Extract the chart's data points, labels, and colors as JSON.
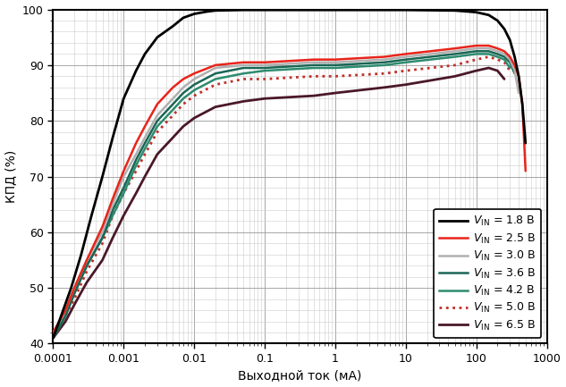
{
  "title": "",
  "xlabel": "Выходной ток (мА)",
  "ylabel": "КПД (%)",
  "xlim": [
    0.0001,
    1000
  ],
  "ylim": [
    40,
    100
  ],
  "yticks": [
    40,
    50,
    60,
    70,
    80,
    90,
    100
  ],
  "series": [
    {
      "label": "V_IN = 1.8 В",
      "color": "#000000",
      "linestyle": "solid",
      "linewidth": 2.0,
      "zorder": 10,
      "points_x": [
        0.0001,
        0.00013,
        0.00018,
        0.00025,
        0.00035,
        0.0005,
        0.0007,
        0.001,
        0.0015,
        0.002,
        0.003,
        0.005,
        0.007,
        0.01,
        0.015,
        0.02,
        0.05,
        0.1,
        0.5,
        1,
        5,
        10,
        50,
        100,
        150,
        200,
        250,
        300,
        350,
        400,
        450,
        500
      ],
      "points_y": [
        41,
        45,
        50,
        56,
        63,
        70,
        77,
        84,
        89,
        92,
        95,
        97,
        98.5,
        99.2,
        99.6,
        99.8,
        99.9,
        99.9,
        99.9,
        99.9,
        99.9,
        99.9,
        99.8,
        99.5,
        99.0,
        98.0,
        96.5,
        94.5,
        91.5,
        88.0,
        83.0,
        76.0
      ]
    },
    {
      "label": "V_IN = 2.5 В",
      "color": "#e8241a",
      "linestyle": "solid",
      "linewidth": 1.8,
      "zorder": 7,
      "points_x": [
        0.0001,
        0.00015,
        0.0002,
        0.0003,
        0.0005,
        0.0007,
        0.001,
        0.0015,
        0.002,
        0.003,
        0.005,
        0.007,
        0.01,
        0.02,
        0.05,
        0.1,
        0.5,
        1,
        5,
        10,
        50,
        100,
        150,
        200,
        250,
        300,
        350,
        400,
        450,
        500
      ],
      "points_y": [
        42,
        46,
        50,
        55,
        61,
        66,
        71,
        76,
        79,
        83,
        86,
        87.5,
        88.5,
        90,
        90.5,
        90.5,
        91,
        91,
        91.5,
        92,
        93,
        93.5,
        93.5,
        93.0,
        92.5,
        91.5,
        90.0,
        88.0,
        83.0,
        71.0
      ]
    },
    {
      "label": "V_IN = 3.0 В",
      "color": "#b0b0b0",
      "linestyle": "solid",
      "linewidth": 1.8,
      "zorder": 6,
      "points_x": [
        0.0001,
        0.00015,
        0.0002,
        0.0003,
        0.0005,
        0.0007,
        0.001,
        0.0015,
        0.002,
        0.003,
        0.005,
        0.007,
        0.01,
        0.02,
        0.05,
        0.1,
        0.5,
        1,
        5,
        10,
        50,
        100,
        150,
        200,
        250,
        300,
        350,
        400
      ],
      "points_y": [
        42,
        46,
        50,
        55,
        60,
        65,
        70,
        74,
        77,
        81,
        84,
        86,
        87.5,
        89.5,
        90,
        90,
        90.5,
        90.5,
        91,
        91.5,
        92.5,
        93,
        93,
        92.5,
        92,
        91,
        89,
        85
      ]
    },
    {
      "label": "V_IN = 3.6 В",
      "color": "#1a6655",
      "linestyle": "solid",
      "linewidth": 1.8,
      "zorder": 5,
      "points_x": [
        0.0001,
        0.00015,
        0.0002,
        0.0003,
        0.0005,
        0.0007,
        0.001,
        0.0015,
        0.002,
        0.003,
        0.005,
        0.007,
        0.01,
        0.02,
        0.05,
        0.1,
        0.5,
        1,
        5,
        10,
        50,
        100,
        150,
        200,
        250,
        300,
        350
      ],
      "points_y": [
        41,
        45,
        49,
        54,
        59,
        64,
        68,
        73,
        76,
        80,
        83,
        85,
        86.5,
        88.5,
        89.5,
        89.5,
        90,
        90,
        90.5,
        91,
        92,
        92.5,
        92.5,
        92,
        91.5,
        90.5,
        88.5
      ]
    },
    {
      "label": "V_IN = 4.2 В",
      "color": "#2d8b6e",
      "linestyle": "solid",
      "linewidth": 1.8,
      "zorder": 4,
      "points_x": [
        0.0001,
        0.00015,
        0.0002,
        0.0003,
        0.0005,
        0.0007,
        0.001,
        0.0015,
        0.002,
        0.003,
        0.005,
        0.007,
        0.01,
        0.02,
        0.05,
        0.1,
        0.5,
        1,
        5,
        10,
        50,
        100,
        150,
        200,
        250,
        300
      ],
      "points_y": [
        41,
        45,
        49,
        54,
        59,
        63,
        67,
        72,
        75,
        79,
        82,
        84,
        85.5,
        87.5,
        88.5,
        89,
        89.5,
        89.5,
        90,
        90.5,
        91.5,
        92,
        92,
        91.5,
        91,
        89.5
      ]
    },
    {
      "label": "V_IN = 5.0 В",
      "color": "#c0302a",
      "linestyle": "dotted",
      "linewidth": 2.0,
      "zorder": 3,
      "points_x": [
        0.0001,
        0.00015,
        0.0002,
        0.0003,
        0.0005,
        0.0007,
        0.001,
        0.0015,
        0.002,
        0.003,
        0.005,
        0.007,
        0.01,
        0.02,
        0.05,
        0.1,
        0.5,
        1,
        5,
        10,
        50,
        100,
        150,
        200,
        250,
        300
      ],
      "points_y": [
        41,
        45,
        48,
        53,
        58,
        63,
        67,
        71,
        74,
        78,
        81,
        83,
        84.5,
        86.5,
        87.5,
        87.5,
        88,
        88,
        88.5,
        89,
        90,
        91,
        91.5,
        91,
        90.5,
        89
      ]
    },
    {
      "label": "V_IN = 6.5 В",
      "color": "#4a1828",
      "linestyle": "solid",
      "linewidth": 2.0,
      "zorder": 2,
      "points_x": [
        0.0001,
        0.00015,
        0.0002,
        0.0003,
        0.0005,
        0.0007,
        0.001,
        0.0015,
        0.002,
        0.003,
        0.005,
        0.007,
        0.01,
        0.02,
        0.05,
        0.1,
        0.5,
        1,
        5,
        10,
        50,
        100,
        150,
        200,
        250
      ],
      "points_y": [
        41,
        44,
        47,
        51,
        55,
        59,
        63,
        67,
        70,
        74,
        77,
        79,
        80.5,
        82.5,
        83.5,
        84,
        84.5,
        85,
        86,
        86.5,
        88,
        89,
        89.5,
        89.0,
        87.5
      ]
    }
  ],
  "grid_minor_color": "#cccccc",
  "grid_major_color": "#999999",
  "bg_color": "#ffffff",
  "border_color": "#000000"
}
